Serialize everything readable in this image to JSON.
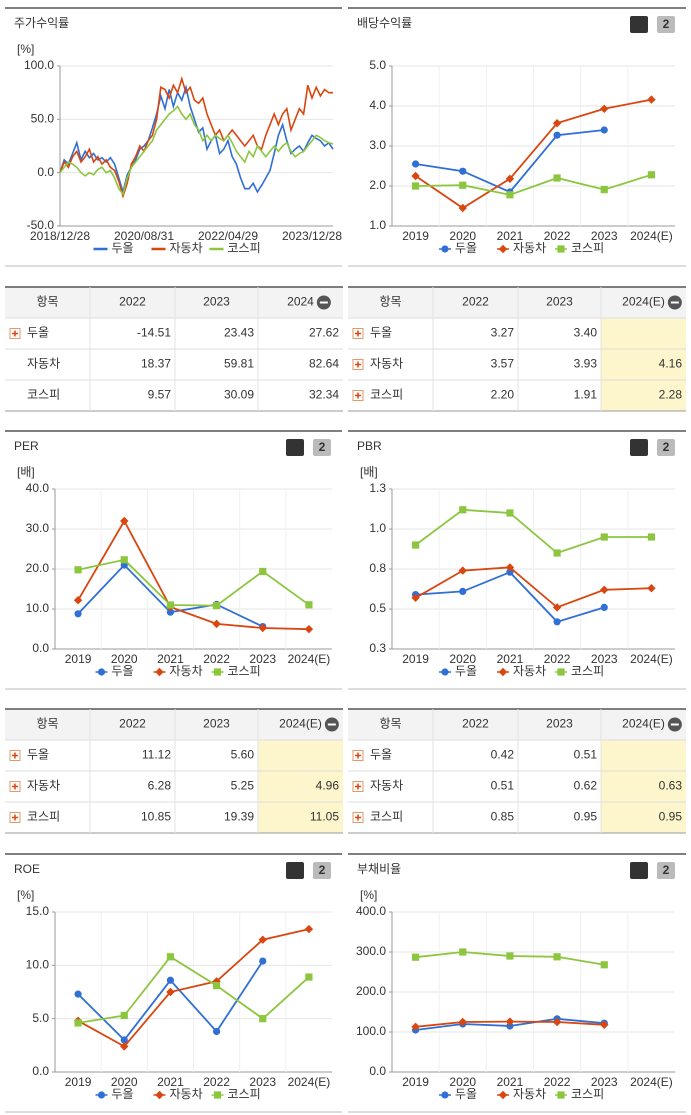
{
  "chart_data": [
    {
      "type": "line",
      "title": "주가수익률",
      "unit": "[%]",
      "categories": [
        "2018/12/28",
        null,
        null,
        null,
        null,
        null,
        null,
        null,
        null,
        null,
        null,
        null,
        null,
        null,
        null,
        null,
        null,
        null,
        null,
        null,
        "2020/08/31",
        null,
        null,
        null,
        null,
        null,
        null,
        null,
        null,
        null,
        null,
        null,
        null,
        null,
        null,
        null,
        null,
        null,
        null,
        null,
        "2022/04/29",
        null,
        null,
        null,
        null,
        null,
        null,
        null,
        null,
        null,
        null,
        null,
        null,
        null,
        null,
        null,
        null,
        null,
        null,
        null,
        "2023/12/28",
        null,
        null,
        null,
        null,
        null
      ],
      "series": [
        {
          "name": "두올",
          "color": "#2f6fd6",
          "values": [
            0,
            12,
            8,
            18,
            28,
            12,
            20,
            14,
            18,
            12,
            14,
            10,
            14,
            8,
            -5,
            -18,
            -2,
            5,
            12,
            22,
            25,
            30,
            42,
            55,
            72,
            60,
            78,
            62,
            75,
            68,
            80,
            62,
            50,
            38,
            42,
            22,
            30,
            35,
            18,
            22,
            30,
            15,
            8,
            -5,
            -15,
            -15,
            -10,
            -18,
            -12,
            -5,
            2,
            18,
            35,
            45,
            30,
            18,
            22,
            25,
            20,
            28,
            35,
            32,
            30,
            25,
            28,
            22
          ]
        },
        {
          "name": "자동차",
          "color": "#d9460f",
          "values": [
            0,
            10,
            5,
            15,
            20,
            10,
            15,
            22,
            10,
            15,
            8,
            12,
            5,
            2,
            -8,
            -22,
            -10,
            8,
            15,
            25,
            20,
            30,
            35,
            50,
            80,
            78,
            70,
            82,
            75,
            88,
            75,
            80,
            68,
            65,
            70,
            55,
            45,
            35,
            40,
            30,
            35,
            40,
            35,
            30,
            25,
            30,
            35,
            25,
            22,
            35,
            45,
            55,
            45,
            55,
            60,
            40,
            50,
            60,
            55,
            82,
            70,
            80,
            72,
            78,
            75,
            75
          ]
        },
        {
          "name": "코스피",
          "color": "#8cc63f",
          "values": [
            0,
            5,
            10,
            8,
            5,
            0,
            -3,
            0,
            -2,
            3,
            5,
            0,
            2,
            -5,
            -15,
            -20,
            -5,
            5,
            10,
            15,
            20,
            25,
            30,
            40,
            45,
            50,
            55,
            58,
            62,
            55,
            50,
            55,
            45,
            40,
            30,
            35,
            30,
            35,
            32,
            30,
            35,
            28,
            20,
            15,
            10,
            20,
            15,
            25,
            20,
            15,
            20,
            25,
            20,
            25,
            28,
            20,
            15,
            18,
            20,
            25,
            30,
            35,
            33,
            30,
            28,
            27
          ]
        }
      ],
      "ylim": [
        -50,
        100
      ],
      "yticks": [
        {
          "value": -50,
          "label": "-50.0"
        },
        {
          "value": 0,
          "label": "0.0"
        },
        {
          "value": 50,
          "label": "50.0"
        },
        {
          "value": 100,
          "label": "100.0"
        }
      ],
      "grid": true
    },
    {
      "type": "line",
      "title": "배당수익률",
      "buttons": [
        "1",
        "2"
      ],
      "categories": [
        "2019",
        "2020",
        "2021",
        "2022",
        "2023",
        "2024(E)"
      ],
      "series": [
        {
          "name": "두올",
          "color": "#2f6fd6",
          "marker": "circle",
          "values": [
            2.55,
            2.37,
            1.85,
            3.27,
            3.4,
            null
          ]
        },
        {
          "name": "자동차",
          "color": "#d9460f",
          "marker": "diamond",
          "values": [
            2.25,
            1.45,
            2.18,
            3.57,
            3.93,
            4.16
          ]
        },
        {
          "name": "코스피",
          "color": "#8cc63f",
          "marker": "square",
          "values": [
            2.0,
            2.02,
            1.78,
            2.2,
            1.91,
            2.28
          ]
        }
      ],
      "ylim": [
        1,
        5
      ],
      "yticks": [
        {
          "value": 1,
          "label": "1.0"
        },
        {
          "value": 2,
          "label": "2.0"
        },
        {
          "value": 3,
          "label": "3.0"
        },
        {
          "value": 4,
          "label": "4.0"
        },
        {
          "value": 5,
          "label": "5.0"
        }
      ],
      "grid": true
    },
    {
      "type": "line",
      "title": "PER",
      "unit": "[배]",
      "buttons": [
        "1",
        "2"
      ],
      "categories": [
        "2019",
        "2020",
        "2021",
        "2022",
        "2023",
        "2024(E)"
      ],
      "series": [
        {
          "name": "두올",
          "color": "#2f6fd6",
          "marker": "circle",
          "values": [
            8.8,
            21.0,
            9.2,
            11.12,
            5.6,
            null
          ]
        },
        {
          "name": "자동차",
          "color": "#d9460f",
          "marker": "diamond",
          "values": [
            12.2,
            32.0,
            10.5,
            6.28,
            5.25,
            4.96
          ]
        },
        {
          "name": "코스피",
          "color": "#8cc63f",
          "marker": "square",
          "values": [
            19.8,
            22.3,
            11.0,
            10.85,
            19.39,
            11.05
          ]
        }
      ],
      "ylim": [
        0,
        40
      ],
      "yticks": [
        {
          "value": 0,
          "label": "0.0"
        },
        {
          "value": 10,
          "label": "10.0"
        },
        {
          "value": 20,
          "label": "20.0"
        },
        {
          "value": 30,
          "label": "30.0"
        },
        {
          "value": 40,
          "label": "40.0"
        }
      ],
      "grid": true
    },
    {
      "type": "line",
      "title": "PBR",
      "unit": "[배]",
      "buttons": [
        "1",
        "2"
      ],
      "categories": [
        "2019",
        "2020",
        "2021",
        "2022",
        "2023",
        "2024(E)"
      ],
      "series": [
        {
          "name": "두올",
          "color": "#2f6fd6",
          "marker": "circle",
          "values": [
            0.59,
            0.61,
            0.73,
            0.42,
            0.51,
            null
          ]
        },
        {
          "name": "자동차",
          "color": "#d9460f",
          "marker": "diamond",
          "values": [
            0.57,
            0.74,
            0.76,
            0.51,
            0.62,
            0.63
          ]
        },
        {
          "name": "코스피",
          "color": "#8cc63f",
          "marker": "square",
          "values": [
            0.9,
            1.12,
            1.1,
            0.85,
            0.95,
            0.95
          ]
        }
      ],
      "ylim": [
        0.25,
        1.25
      ],
      "yticks": [
        {
          "value": 0.25,
          "label": "0.3"
        },
        0.5,
        {
          "value": 0.75,
          "label": "0.8"
        },
        {
          "value": 1,
          "label": "1.0"
        },
        {
          "value": 1.25,
          "label": "1.3"
        }
      ],
      "grid": true
    },
    {
      "type": "line",
      "title": "ROE",
      "unit": "[%]",
      "buttons": [
        "1",
        "2"
      ],
      "categories": [
        "2019",
        "2020",
        "2021",
        "2022",
        "2023",
        "2024(E)"
      ],
      "series": [
        {
          "name": "두올",
          "color": "#2f6fd6",
          "marker": "circle",
          "values": [
            7.3,
            3.0,
            8.6,
            3.8,
            10.4,
            null
          ]
        },
        {
          "name": "자동차",
          "color": "#d9460f",
          "marker": "diamond",
          "values": [
            4.8,
            2.4,
            7.5,
            8.5,
            12.4,
            13.4
          ]
        },
        {
          "name": "코스피",
          "color": "#8cc63f",
          "marker": "square",
          "values": [
            4.6,
            5.3,
            10.8,
            8.1,
            5.0,
            8.9
          ]
        }
      ],
      "ylim": [
        0,
        15
      ],
      "yticks": [
        {
          "value": 0,
          "label": "0.0"
        },
        {
          "value": 5,
          "label": "5.0"
        },
        {
          "value": 10,
          "label": "10.0"
        },
        {
          "value": 15,
          "label": "15.0"
        }
      ],
      "grid": true
    },
    {
      "type": "line",
      "title": "부채비율",
      "unit": "[%]",
      "buttons": [
        "1",
        "2"
      ],
      "categories": [
        "2019",
        "2020",
        "2021",
        "2022",
        "2023",
        "2024(E)"
      ],
      "series": [
        {
          "name": "두올",
          "color": "#2f6fd6",
          "marker": "circle",
          "values": [
            105,
            120,
            115,
            133,
            122,
            null
          ]
        },
        {
          "name": "자동차",
          "color": "#d9460f",
          "marker": "diamond",
          "values": [
            113,
            125,
            126,
            125,
            118,
            null
          ]
        },
        {
          "name": "코스피",
          "color": "#8cc63f",
          "marker": "square",
          "values": [
            287,
            300,
            290,
            288,
            268,
            null
          ]
        }
      ],
      "ylim": [
        0,
        400
      ],
      "yticks": [
        {
          "value": 0,
          "label": "0.0"
        },
        {
          "value": 100,
          "label": "100.0"
        },
        {
          "value": 200,
          "label": "200.0"
        },
        {
          "value": 300,
          "label": "300.0"
        },
        {
          "value": 400,
          "label": "400.0"
        }
      ],
      "grid": true
    }
  ],
  "tables": [
    {
      "headers": [
        "항목",
        "2022",
        "2023",
        "2024"
      ],
      "rows": [
        {
          "name": "두올",
          "expandable": true,
          "cells": [
            "-14.51",
            "23.43",
            "27.62"
          ]
        },
        {
          "name": "자동차",
          "expandable": false,
          "cells": [
            "18.37",
            "59.81",
            "82.64"
          ]
        },
        {
          "name": "코스피",
          "expandable": false,
          "cells": [
            "9.57",
            "30.09",
            "32.34"
          ]
        }
      ]
    },
    {
      "headers": [
        "항목",
        "2022",
        "2023",
        "2024(E)"
      ],
      "highlight_color": "#fdf5cc",
      "rows": [
        {
          "name": "두올",
          "expandable": true,
          "cells": [
            "3.27",
            "3.40",
            null
          ]
        },
        {
          "name": "자동차",
          "expandable": true,
          "cells": [
            "3.57",
            "3.93",
            "4.16"
          ]
        },
        {
          "name": "코스피",
          "expandable": true,
          "cells": [
            "2.20",
            "1.91",
            "2.28"
          ]
        }
      ]
    },
    {
      "headers": [
        "항목",
        "2022",
        "2023",
        "2024(E)"
      ],
      "highlight_color": "#fdf5cc",
      "rows": [
        {
          "name": "두올",
          "expandable": true,
          "cells": [
            "11.12",
            "5.60",
            null
          ]
        },
        {
          "name": "자동차",
          "expandable": true,
          "cells": [
            "6.28",
            "5.25",
            "4.96"
          ]
        },
        {
          "name": "코스피",
          "expandable": true,
          "cells": [
            "10.85",
            "19.39",
            "11.05"
          ]
        }
      ]
    },
    {
      "headers": [
        "항목",
        "2022",
        "2023",
        "2024(E)"
      ],
      "highlight_color": "#fdf5cc",
      "rows": [
        {
          "name": "두올",
          "expandable": true,
          "cells": [
            "0.42",
            "0.51",
            null
          ]
        },
        {
          "name": "자동차",
          "expandable": true,
          "cells": [
            "0.51",
            "0.62",
            "0.63"
          ]
        },
        {
          "name": "코스피",
          "expandable": true,
          "cells": [
            "0.85",
            "0.95",
            "0.95"
          ]
        }
      ]
    }
  ]
}
